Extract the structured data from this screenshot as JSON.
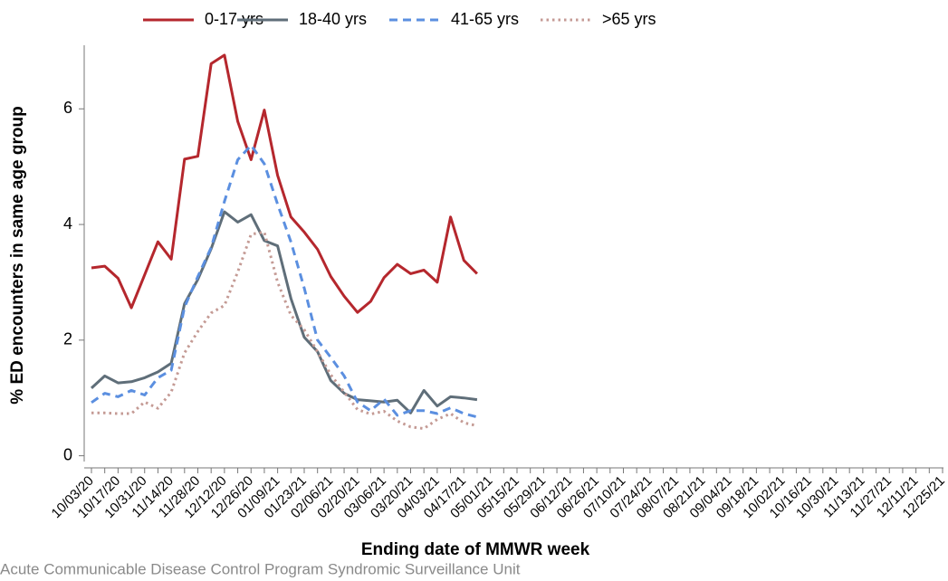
{
  "chart_data": {
    "type": "line",
    "y_label": "% ED encounters in same age group",
    "x_label": "Ending date of MMWR week",
    "source": "Acute Communicable Disease Control Program Syndromic Surveillance Unit",
    "categories": [
      "10/03/20",
      null,
      "10/17/20",
      null,
      "10/31/20",
      null,
      "11/14/20",
      null,
      "11/28/20",
      null,
      "12/12/20",
      null,
      "12/26/20",
      null,
      "01/09/21",
      null,
      "01/23/21",
      null,
      "02/06/21",
      null,
      "02/20/21",
      null,
      "03/06/21",
      null,
      "03/20/21",
      null,
      "04/03/21",
      null,
      "04/17/21",
      null,
      "05/01/21",
      null,
      "05/15/21",
      null,
      "05/29/21",
      null,
      "06/12/21",
      null,
      "06/26/21",
      null,
      "07/10/21",
      null,
      "07/24/21",
      null,
      "08/07/21",
      null,
      "08/21/21",
      null,
      "09/04/21",
      null,
      "09/18/21",
      null,
      "10/02/21",
      null,
      "10/16/21",
      null,
      "10/30/21",
      null,
      "11/13/21",
      null,
      "11/27/21",
      null,
      "12/11/21",
      null,
      "12/25/21"
    ],
    "series": [
      {
        "name": "0-17 yrs",
        "color": "#b5272d",
        "dash": "solid",
        "values": [
          3.25,
          3.28,
          3.07,
          2.56,
          3.13,
          3.7,
          3.4,
          5.13,
          5.18,
          6.78,
          6.93,
          5.78,
          5.12,
          5.98,
          4.85,
          4.13,
          3.87,
          3.57,
          3.1,
          2.76,
          2.48,
          2.67,
          3.08,
          3.31,
          3.15,
          3.21,
          3.0,
          4.13,
          3.38,
          3.15,
          null,
          null,
          null,
          null,
          null,
          null,
          null,
          null,
          null,
          null,
          null,
          null,
          null,
          null,
          null,
          null,
          null,
          null,
          null,
          null,
          null,
          null,
          null,
          null,
          null,
          null,
          null,
          null,
          null,
          null,
          null,
          null,
          null,
          null,
          null
        ]
      },
      {
        "name": "18-40 yrs",
        "color": "#5f6e79",
        "dash": "solid",
        "values": [
          1.17,
          1.38,
          1.26,
          1.28,
          1.35,
          1.45,
          1.6,
          2.63,
          3.05,
          3.58,
          4.22,
          4.04,
          4.17,
          3.72,
          3.63,
          2.72,
          2.05,
          1.8,
          1.3,
          1.08,
          0.97,
          0.95,
          0.93,
          0.96,
          0.74,
          1.13,
          0.86,
          1.02,
          1.0,
          0.97,
          null,
          null,
          null,
          null,
          null,
          null,
          null,
          null,
          null,
          null,
          null,
          null,
          null,
          null,
          null,
          null,
          null,
          null,
          null,
          null,
          null,
          null,
          null,
          null,
          null,
          null,
          null,
          null,
          null,
          null,
          null,
          null,
          null,
          null,
          null
        ]
      },
      {
        "name": "41-65 yrs",
        "color": "#5b8fe0",
        "dash": "dashed",
        "values": [
          0.92,
          1.08,
          1.02,
          1.13,
          1.05,
          1.35,
          1.48,
          2.57,
          3.1,
          3.6,
          4.4,
          5.12,
          5.37,
          5.05,
          4.35,
          3.7,
          2.9,
          2.0,
          1.7,
          1.38,
          0.93,
          0.78,
          0.98,
          0.7,
          0.78,
          0.78,
          0.73,
          0.83,
          0.73,
          0.67,
          null,
          null,
          null,
          null,
          null,
          null,
          null,
          null,
          null,
          null,
          null,
          null,
          null,
          null,
          null,
          null,
          null,
          null,
          null,
          null,
          null,
          null,
          null,
          null,
          null,
          null,
          null,
          null,
          null,
          null,
          null,
          null,
          null,
          null,
          null
        ]
      },
      {
        "name": ">65 yrs",
        "color": "#c49a94",
        "dash": "dotted",
        "values": [
          0.74,
          0.74,
          0.73,
          0.73,
          0.93,
          0.82,
          1.1,
          1.78,
          2.15,
          2.47,
          2.6,
          3.18,
          3.83,
          3.87,
          3.0,
          2.43,
          2.18,
          1.8,
          1.4,
          1.1,
          0.8,
          0.72,
          0.77,
          0.6,
          0.5,
          0.47,
          0.63,
          0.73,
          0.57,
          0.52,
          null,
          null,
          null,
          null,
          null,
          null,
          null,
          null,
          null,
          null,
          null,
          null,
          null,
          null,
          null,
          null,
          null,
          null,
          null,
          null,
          null,
          null,
          null,
          null,
          null,
          null,
          null,
          null,
          null,
          null,
          null,
          null,
          null,
          null,
          null
        ]
      }
    ],
    "ylim": [
      -0.1,
      7.1
    ],
    "yticks": [
      0,
      2,
      4,
      6
    ],
    "grid": false,
    "legend": "top"
  }
}
